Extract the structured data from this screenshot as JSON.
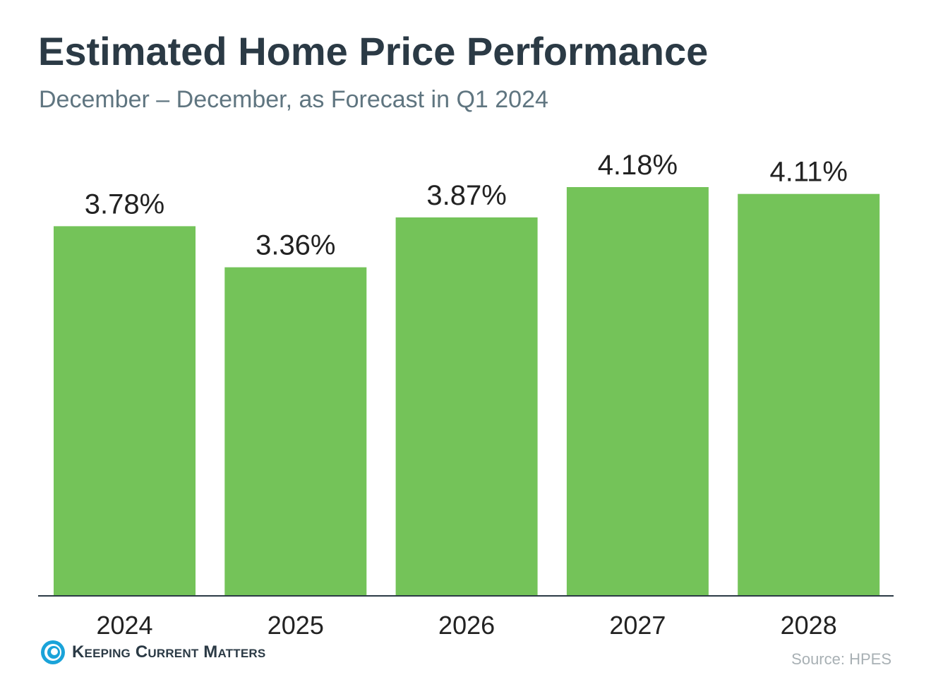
{
  "colors": {
    "bar": "#74c359",
    "axis": "#2b3a45",
    "title": "#2b3a45",
    "subtitle": "#5f7580",
    "label": "#222222",
    "source": "#a8b0b4",
    "logo_blue": "#1aa3d9"
  },
  "title": "Estimated Home Price Performance",
  "subtitle": "December – December, as Forecast in Q1 2024",
  "chart_data": {
    "type": "bar",
    "categories": [
      "2024",
      "2025",
      "2026",
      "2027",
      "2028"
    ],
    "values": [
      3.78,
      3.36,
      3.87,
      4.18,
      4.11
    ],
    "value_labels": [
      "3.78%",
      "3.36%",
      "3.87%",
      "4.18%",
      "4.11%"
    ],
    "title": "Estimated Home Price Performance",
    "subtitle": "December – December, as Forecast in Q1 2024",
    "xlabel": "",
    "ylabel": "",
    "ylim": [
      0,
      4.18
    ],
    "grid": false,
    "legend": "none"
  },
  "footer": {
    "brand": "Keeping Current Matters",
    "logo_icon": "spiral-logo-icon",
    "source": "Source: HPES"
  }
}
